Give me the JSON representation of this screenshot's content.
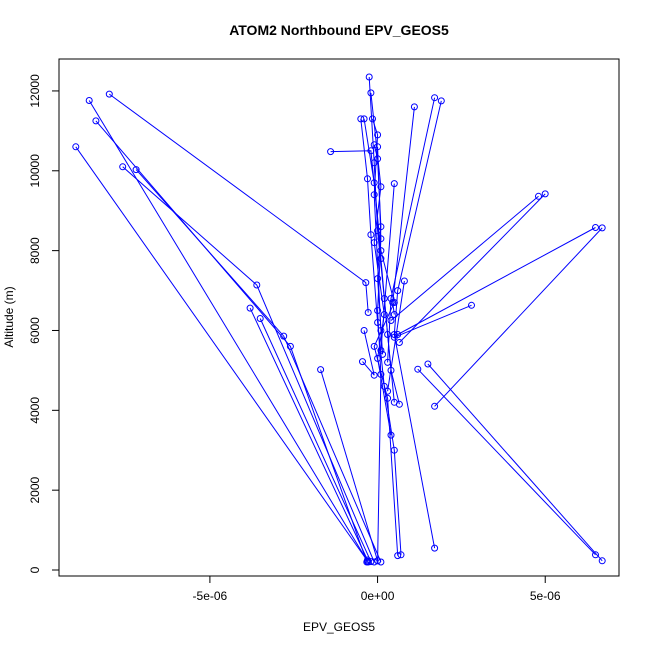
{
  "chart_data": {
    "type": "line",
    "title": "ATOM2 Northbound EPV_GEOS5",
    "xlabel": "EPV_GEOS5",
    "ylabel": "Altitude (m)",
    "xlim": [
      -9.5e-06,
      7.2e-06
    ],
    "ylim": [
      -150,
      12800
    ],
    "x_ticks": [
      {
        "value": -5e-06,
        "label": "-5e-06"
      },
      {
        "value": 0,
        "label": "0e+00"
      },
      {
        "value": 5e-06,
        "label": "5e-06"
      }
    ],
    "y_ticks": [
      {
        "value": 0,
        "label": "0"
      },
      {
        "value": 2000,
        "label": "2000"
      },
      {
        "value": 4000,
        "label": "4000"
      },
      {
        "value": 6000,
        "label": "6000"
      },
      {
        "value": 8000,
        "label": "8000"
      },
      {
        "value": 10000,
        "label": "10000"
      },
      {
        "value": 12000,
        "label": "12000"
      }
    ],
    "series_color": "#0000ff",
    "series": [
      {
        "x": [
          -9e-06,
          -2.8e-07
        ],
        "y": [
          10600,
          200
        ]
      },
      {
        "x": [
          -8.6e-06,
          -3e-07
        ],
        "y": [
          11760,
          220
        ]
      },
      {
        "x": [
          -8.4e-06,
          -2.6e-06,
          -3.2e-07
        ],
        "y": [
          11250,
          5600,
          200
        ]
      },
      {
        "x": [
          -8e-06,
          -3.5e-07,
          -2.8e-07
        ],
        "y": [
          11920,
          7200,
          6450
        ]
      },
      {
        "x": [
          -7.6e-06,
          -3.6e-06,
          -1e-07
        ],
        "y": [
          10100,
          7140,
          200
        ]
      },
      {
        "x": [
          -7.2e-06,
          -2.8e-06,
          1e-07
        ],
        "y": [
          10030,
          5860,
          200
        ]
      },
      {
        "x": [
          -3.8e-06,
          -3e-07
        ],
        "y": [
          6560,
          250
        ]
      },
      {
        "x": [
          -3.5e-06,
          -2e-07
        ],
        "y": [
          6300,
          210
        ]
      },
      {
        "x": [
          -1.7e-06,
          0.0
        ],
        "y": [
          5020,
          230
        ]
      },
      {
        "x": [
          -1.4e-06,
          -2e-07,
          1e-07,
          5e-07,
          -1e-07,
          3e-07,
          6e-07
        ],
        "y": [
          10480,
          10500,
          8000,
          6700,
          5600,
          4300,
          360
        ]
      },
      {
        "x": [
          -5e-07,
          -3e-07,
          -2e-07,
          0.0,
          2e-07,
          5e-07,
          7e-07
        ],
        "y": [
          11300,
          9800,
          8400,
          6200,
          4600,
          3000,
          380
        ]
      },
      {
        "x": [
          -4e-07,
          -1e-07,
          1e-07,
          3e-07,
          5e-07
        ],
        "y": [
          11300,
          9700,
          7800,
          5900,
          4200
        ]
      },
      {
        "x": [
          -2.5e-07,
          -1e-07,
          0.0,
          2e-07,
          4e-07,
          6.5e-07
        ],
        "y": [
          12350,
          10200,
          8500,
          6800,
          5000,
          4150
        ]
      },
      {
        "x": [
          -2e-07,
          1e-07,
          -1e-07,
          2e-07,
          0.0,
          4e-07
        ],
        "y": [
          11950,
          9600,
          8200,
          6400,
          5300,
          3380
        ]
      },
      {
        "x": [
          -1.5e-07,
          0.0,
          -1e-07,
          1e-07
        ],
        "y": [
          11300,
          10900,
          9400,
          6000
        ]
      },
      {
        "x": [
          -1e-07,
          0.0,
          1e-07,
          0.0,
          1.5e-07
        ],
        "y": [
          10650,
          10300,
          8600,
          7300,
          5400
        ]
      },
      {
        "x": [
          0.0,
          1e-07,
          0.0,
          1e-07,
          0.0
        ],
        "y": [
          10600,
          8300,
          6500,
          4900,
          230
        ]
      },
      {
        "x": [
          1.1e-06,
          4.5e-07,
          5e-07
        ],
        "y": [
          11600,
          6700,
          6400
        ]
      },
      {
        "x": [
          1.7e-06,
          4e-07,
          3e-07
        ],
        "y": [
          11830,
          6800,
          5200
        ]
      },
      {
        "x": [
          1.9e-06,
          6e-07,
          5e-07,
          1.7e-06
        ],
        "y": [
          11750,
          7000,
          5900,
          550
        ]
      },
      {
        "x": [
          5e-07,
          1e-07
        ],
        "y": [
          9680,
          5500
        ]
      },
      {
        "x": [
          4.8e-06,
          4e-07
        ],
        "y": [
          9360,
          6250
        ]
      },
      {
        "x": [
          5e-06,
          6.5e-07
        ],
        "y": [
          9420,
          5700
        ]
      },
      {
        "x": [
          6.5e-06,
          6e-07
        ],
        "y": [
          8580,
          5900
        ]
      },
      {
        "x": [
          6.7e-06,
          1.7e-06
        ],
        "y": [
          8570,
          4100
        ]
      },
      {
        "x": [
          2.8e-06,
          5e-07
        ],
        "y": [
          6630,
          5830
        ]
      },
      {
        "x": [
          1.5e-06,
          6.7e-06
        ],
        "y": [
          5160,
          230
        ]
      },
      {
        "x": [
          1.2e-06,
          6.5e-06
        ],
        "y": [
          5030,
          380
        ]
      },
      {
        "x": [
          8e-07,
          3e-07
        ],
        "y": [
          7240,
          4480
        ]
      },
      {
        "x": [
          -4.5e-07,
          -1e-07,
          -4e-07
        ],
        "y": [
          5220,
          4880,
          6000
        ]
      }
    ]
  }
}
